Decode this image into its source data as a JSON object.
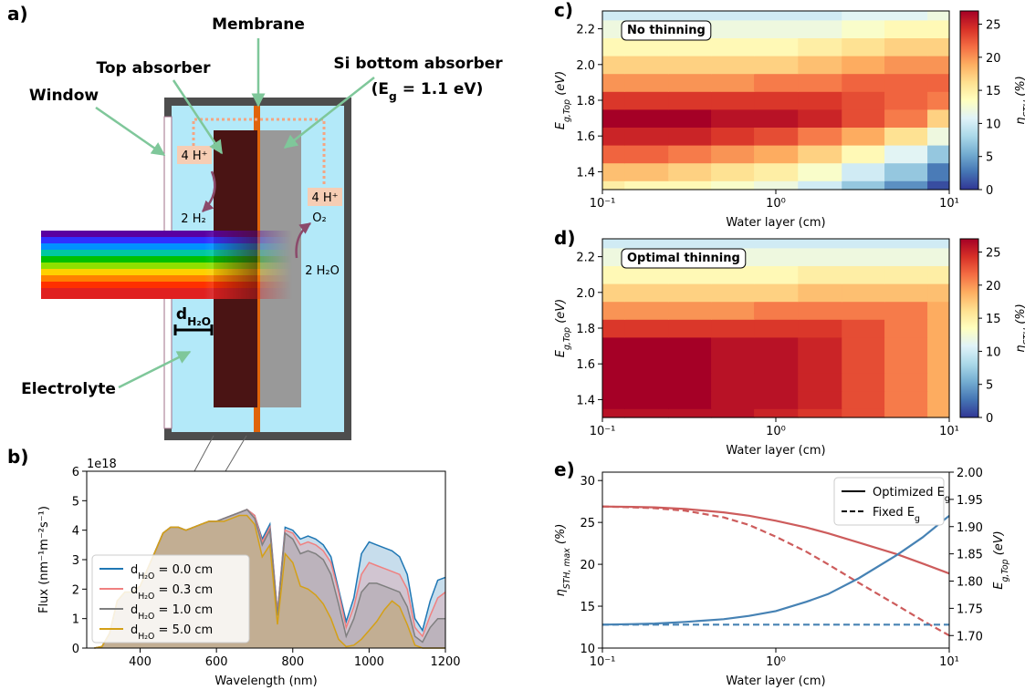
{
  "diagram": {
    "panel": "a)",
    "membrane": "Membrane",
    "top_absorber": "Top absorber",
    "bottom_absorber": "Si bottom absorber",
    "bottom_gap": [
      "(E",
      "g",
      " = 1.1 eV)"
    ],
    "window": "Window",
    "electrolyte": "Electrolyte",
    "left_ion": "4 H⁺",
    "h2": "2 H₂",
    "right_ion": "4 H⁺",
    "o2": "O₂",
    "water": "2 H₂O",
    "thickness": [
      "d",
      "H₂O"
    ]
  },
  "chart_data": [
    {
      "type": "area",
      "panel": "b)",
      "offset_label": "1e18",
      "xlabel": "Wavelength (nm)",
      "ylabel": "Flux  (nm⁻¹m⁻²s⁻¹)",
      "legend": "lower left",
      "x": [
        280,
        300,
        320,
        340,
        360,
        380,
        400,
        420,
        440,
        460,
        480,
        500,
        520,
        540,
        560,
        580,
        600,
        620,
        640,
        660,
        680,
        700,
        720,
        740,
        760,
        780,
        800,
        820,
        840,
        860,
        880,
        900,
        920,
        940,
        960,
        980,
        1000,
        1020,
        1040,
        1060,
        1080,
        1100,
        1120,
        1140,
        1160,
        1180,
        1200
      ],
      "series": [
        {
          "name": [
            "d",
            "H₂O",
            " = 0.0 cm"
          ],
          "color": "#1f77b4",
          "values": [
            0,
            0.05,
            0.5,
            1.6,
            1.9,
            1.9,
            2.1,
            2.7,
            3.3,
            3.9,
            4.1,
            4.1,
            4.0,
            4.1,
            4.2,
            4.3,
            4.3,
            4.4,
            4.5,
            4.6,
            4.7,
            4.5,
            3.7,
            4.2,
            1.2,
            4.1,
            4.0,
            3.7,
            3.8,
            3.7,
            3.5,
            3.1,
            2.0,
            0.9,
            1.7,
            3.2,
            3.6,
            3.5,
            3.4,
            3.3,
            3.1,
            2.5,
            1.0,
            0.6,
            1.6,
            2.3,
            2.4
          ]
        },
        {
          "name": [
            "d",
            "H₂O",
            " = 0.3 cm"
          ],
          "color": "#f08080",
          "values": [
            0,
            0.05,
            0.5,
            1.6,
            1.9,
            1.9,
            2.1,
            2.7,
            3.3,
            3.9,
            4.1,
            4.1,
            4.0,
            4.1,
            4.2,
            4.3,
            4.3,
            4.4,
            4.5,
            4.6,
            4.7,
            4.5,
            3.6,
            4.1,
            1.2,
            4.0,
            3.9,
            3.5,
            3.6,
            3.5,
            3.3,
            2.9,
            1.9,
            0.7,
            1.4,
            2.5,
            2.9,
            2.8,
            2.7,
            2.6,
            2.5,
            2.0,
            0.7,
            0.4,
            1.1,
            1.7,
            1.9
          ]
        },
        {
          "name": [
            "d",
            "H₂O",
            " = 1.0 cm"
          ],
          "color": "#7f7f7f",
          "values": [
            0,
            0.05,
            0.5,
            1.6,
            1.9,
            1.9,
            2.1,
            2.7,
            3.3,
            3.9,
            4.1,
            4.1,
            4.0,
            4.1,
            4.2,
            4.3,
            4.3,
            4.4,
            4.5,
            4.6,
            4.7,
            4.4,
            3.5,
            4.0,
            1.1,
            3.9,
            3.7,
            3.2,
            3.3,
            3.2,
            3.0,
            2.5,
            1.5,
            0.4,
            1.0,
            1.9,
            2.2,
            2.2,
            2.1,
            2.0,
            1.9,
            1.4,
            0.4,
            0.2,
            0.7,
            1.0,
            1.0
          ]
        },
        {
          "name": [
            "d",
            "H₂O",
            " = 5.0 cm"
          ],
          "color": "#d4a017",
          "values": [
            0,
            0.05,
            0.5,
            1.6,
            1.9,
            1.9,
            2.1,
            2.7,
            3.3,
            3.9,
            4.1,
            4.1,
            4.0,
            4.1,
            4.2,
            4.3,
            4.3,
            4.3,
            4.4,
            4.5,
            4.5,
            4.2,
            3.1,
            3.5,
            0.8,
            3.2,
            2.9,
            2.1,
            2.0,
            1.8,
            1.5,
            1.0,
            0.3,
            0.05,
            0.1,
            0.3,
            0.6,
            0.9,
            1.3,
            1.6,
            1.4,
            0.8,
            0.1,
            0,
            0,
            0,
            0
          ]
        }
      ],
      "xlim": [
        260,
        1200
      ],
      "ylim": [
        0,
        6
      ],
      "xticks": [
        400,
        600,
        800,
        1000,
        1200
      ],
      "yticks": [
        0,
        1,
        2,
        3,
        4,
        5,
        6
      ]
    },
    {
      "type": "heatmap",
      "panel": "c)",
      "annotation": "No thinning",
      "xlabel": "Water layer (cm)",
      "ylabel": [
        "E",
        "g,Top",
        " (eV)"
      ],
      "colorbar_label": [
        "η",
        "STH",
        " (%)"
      ],
      "xscale": "log",
      "colormap": "RdYlBu_r",
      "x": [
        0.1,
        0.18,
        0.32,
        0.56,
        1,
        1.8,
        3.2,
        5.6,
        10
      ],
      "y": [
        1.3,
        1.4,
        1.5,
        1.6,
        1.7,
        1.8,
        1.9,
        2.0,
        2.1,
        2.2,
        2.3
      ],
      "z": [
        [
          15,
          14,
          14,
          13,
          12,
          10,
          7,
          4,
          1
        ],
        [
          18,
          18,
          17,
          16,
          15,
          13,
          10,
          7,
          3
        ],
        [
          22,
          22,
          21,
          20,
          19,
          17,
          14,
          11,
          7
        ],
        [
          25,
          25,
          25,
          24,
          23,
          21,
          19,
          16,
          12
        ],
        [
          27,
          27,
          27,
          26,
          26,
          25,
          23,
          21,
          17
        ],
        [
          24,
          24,
          24,
          24,
          24,
          24,
          23,
          22,
          21
        ],
        [
          20,
          20,
          20,
          20,
          21,
          21,
          22,
          22,
          22
        ],
        [
          17,
          17,
          17,
          17,
          17,
          18,
          19,
          20,
          20
        ],
        [
          14,
          14,
          14,
          14,
          14,
          15,
          16,
          17,
          17
        ],
        [
          12,
          12,
          12,
          12,
          12,
          12,
          13,
          14,
          14
        ],
        [
          10,
          10,
          10,
          10,
          10,
          10,
          11,
          11,
          12
        ]
      ],
      "xlim": [
        0.1,
        10
      ],
      "ylim": [
        1.3,
        2.3
      ],
      "xticks": [
        {
          "value": 0.1,
          "label": "10⁻¹"
        },
        {
          "value": 1,
          "label": "10⁰"
        },
        {
          "value": 10,
          "label": "10¹"
        }
      ],
      "yticks": [
        1.4,
        1.6,
        1.8,
        {
          "value": 2,
          "label": "2.0"
        },
        2.2
      ],
      "clim": [
        0,
        27
      ],
      "cticks": [
        0,
        5,
        10,
        15,
        20,
        25
      ]
    },
    {
      "type": "heatmap",
      "panel": "d)",
      "annotation": "Optimal thinning",
      "xlabel": "Water layer (cm)",
      "ylabel": [
        "E",
        "g,Top",
        " (eV)"
      ],
      "colorbar_label": [
        "η",
        "STH",
        " (%)"
      ],
      "xscale": "log",
      "colormap": "RdYlBu_r",
      "x": [
        0.1,
        0.18,
        0.32,
        0.56,
        1,
        1.8,
        3.2,
        5.6,
        10
      ],
      "y": [
        1.3,
        1.4,
        1.5,
        1.6,
        1.7,
        1.8,
        1.9,
        2.0,
        2.1,
        2.2,
        2.3
      ],
      "z": [
        [
          26,
          26,
          26,
          26,
          25,
          24,
          23,
          21,
          19
        ],
        [
          27,
          27,
          27,
          26,
          26,
          25,
          23,
          21,
          19
        ],
        [
          27,
          27,
          27,
          26,
          26,
          25,
          23,
          21,
          19
        ],
        [
          27,
          27,
          27,
          26,
          26,
          25,
          23,
          21,
          19
        ],
        [
          27,
          27,
          27,
          26,
          26,
          25,
          23,
          21,
          19
        ],
        [
          24,
          24,
          24,
          24,
          24,
          24,
          23,
          21,
          19
        ],
        [
          20,
          20,
          20,
          20,
          21,
          21,
          21,
          21,
          19
        ],
        [
          17,
          17,
          17,
          17,
          17,
          18,
          18,
          18,
          18
        ],
        [
          14,
          14,
          14,
          14,
          14,
          15,
          15,
          15,
          15
        ],
        [
          12,
          12,
          12,
          12,
          12,
          12,
          12,
          12,
          12
        ],
        [
          10,
          10,
          10,
          10,
          10,
          10,
          10,
          10,
          10
        ]
      ],
      "xlim": [
        0.1,
        10
      ],
      "ylim": [
        1.3,
        2.3
      ],
      "xticks": [
        {
          "value": 0.1,
          "label": "10⁻¹"
        },
        {
          "value": 1,
          "label": "10⁰"
        },
        {
          "value": 10,
          "label": "10¹"
        }
      ],
      "yticks": [
        1.4,
        1.6,
        1.8,
        {
          "value": 2,
          "label": "2.0"
        },
        2.2
      ],
      "clim": [
        0,
        27
      ],
      "cticks": [
        0,
        5,
        10,
        15,
        20,
        25
      ]
    },
    {
      "type": "line",
      "panel": "e)",
      "xlabel": "Water layer (cm)",
      "ylabel": [
        "η",
        "STH, max",
        "  (%)"
      ],
      "ylabel_color": "#cd5c5c",
      "y2label": [
        "E",
        "g,Top",
        " (eV)"
      ],
      "y2label_color": "#4682b4",
      "xscale": "log",
      "legend": "upper right",
      "legend_entries": [
        {
          "label": [
            "Optimized E",
            "g"
          ],
          "dash": false
        },
        {
          "label": [
            "Fixed E",
            "g"
          ],
          "dash": true
        }
      ],
      "x": [
        0.1,
        0.15,
        0.2,
        0.3,
        0.5,
        0.7,
        1,
        1.5,
        2,
        3,
        5,
        7,
        10
      ],
      "series": [
        {
          "color": "#cd5c5c",
          "dash": false,
          "values": [
            26.9,
            26.85,
            26.8,
            26.6,
            26.2,
            25.8,
            25.2,
            24.4,
            23.7,
            22.6,
            21.2,
            20.1,
            18.9
          ]
        },
        {
          "color": "#cd5c5c",
          "dash": true,
          "values": [
            26.9,
            26.8,
            26.7,
            26.4,
            25.6,
            24.7,
            23.3,
            21.5,
            20.0,
            17.8,
            15.1,
            13.3,
            11.5
          ]
        },
        {
          "color": "#4682b4",
          "dash": false,
          "axis": "y2",
          "values": [
            1.72,
            1.721,
            1.722,
            1.725,
            1.73,
            1.736,
            1.745,
            1.762,
            1.776,
            1.805,
            1.848,
            1.88,
            1.92
          ]
        },
        {
          "color": "#4682b4",
          "dash": true,
          "axis": "y2",
          "values": [
            1.72,
            1.72,
            1.72,
            1.72,
            1.72,
            1.72,
            1.72,
            1.72,
            1.72,
            1.72,
            1.72,
            1.72,
            1.72
          ]
        }
      ],
      "xlim": [
        0.1,
        10
      ],
      "ylim": [
        10,
        31
      ],
      "y2lim": [
        1.677,
        2.0
      ],
      "xticks": [
        {
          "value": 0.1,
          "label": "10⁻¹"
        },
        {
          "value": 1,
          "label": "10⁰"
        },
        {
          "value": 10,
          "label": "10¹"
        }
      ],
      "yticks": [
        10,
        15,
        20,
        25,
        30
      ],
      "y2ticks": [
        {
          "value": 1.7,
          "label": "1.70"
        },
        1.75,
        {
          "value": 1.8,
          "label": "1.80"
        },
        1.85,
        {
          "value": 1.9,
          "label": "1.90"
        },
        1.95,
        {
          "value": 2,
          "label": "2.00"
        }
      ]
    }
  ]
}
